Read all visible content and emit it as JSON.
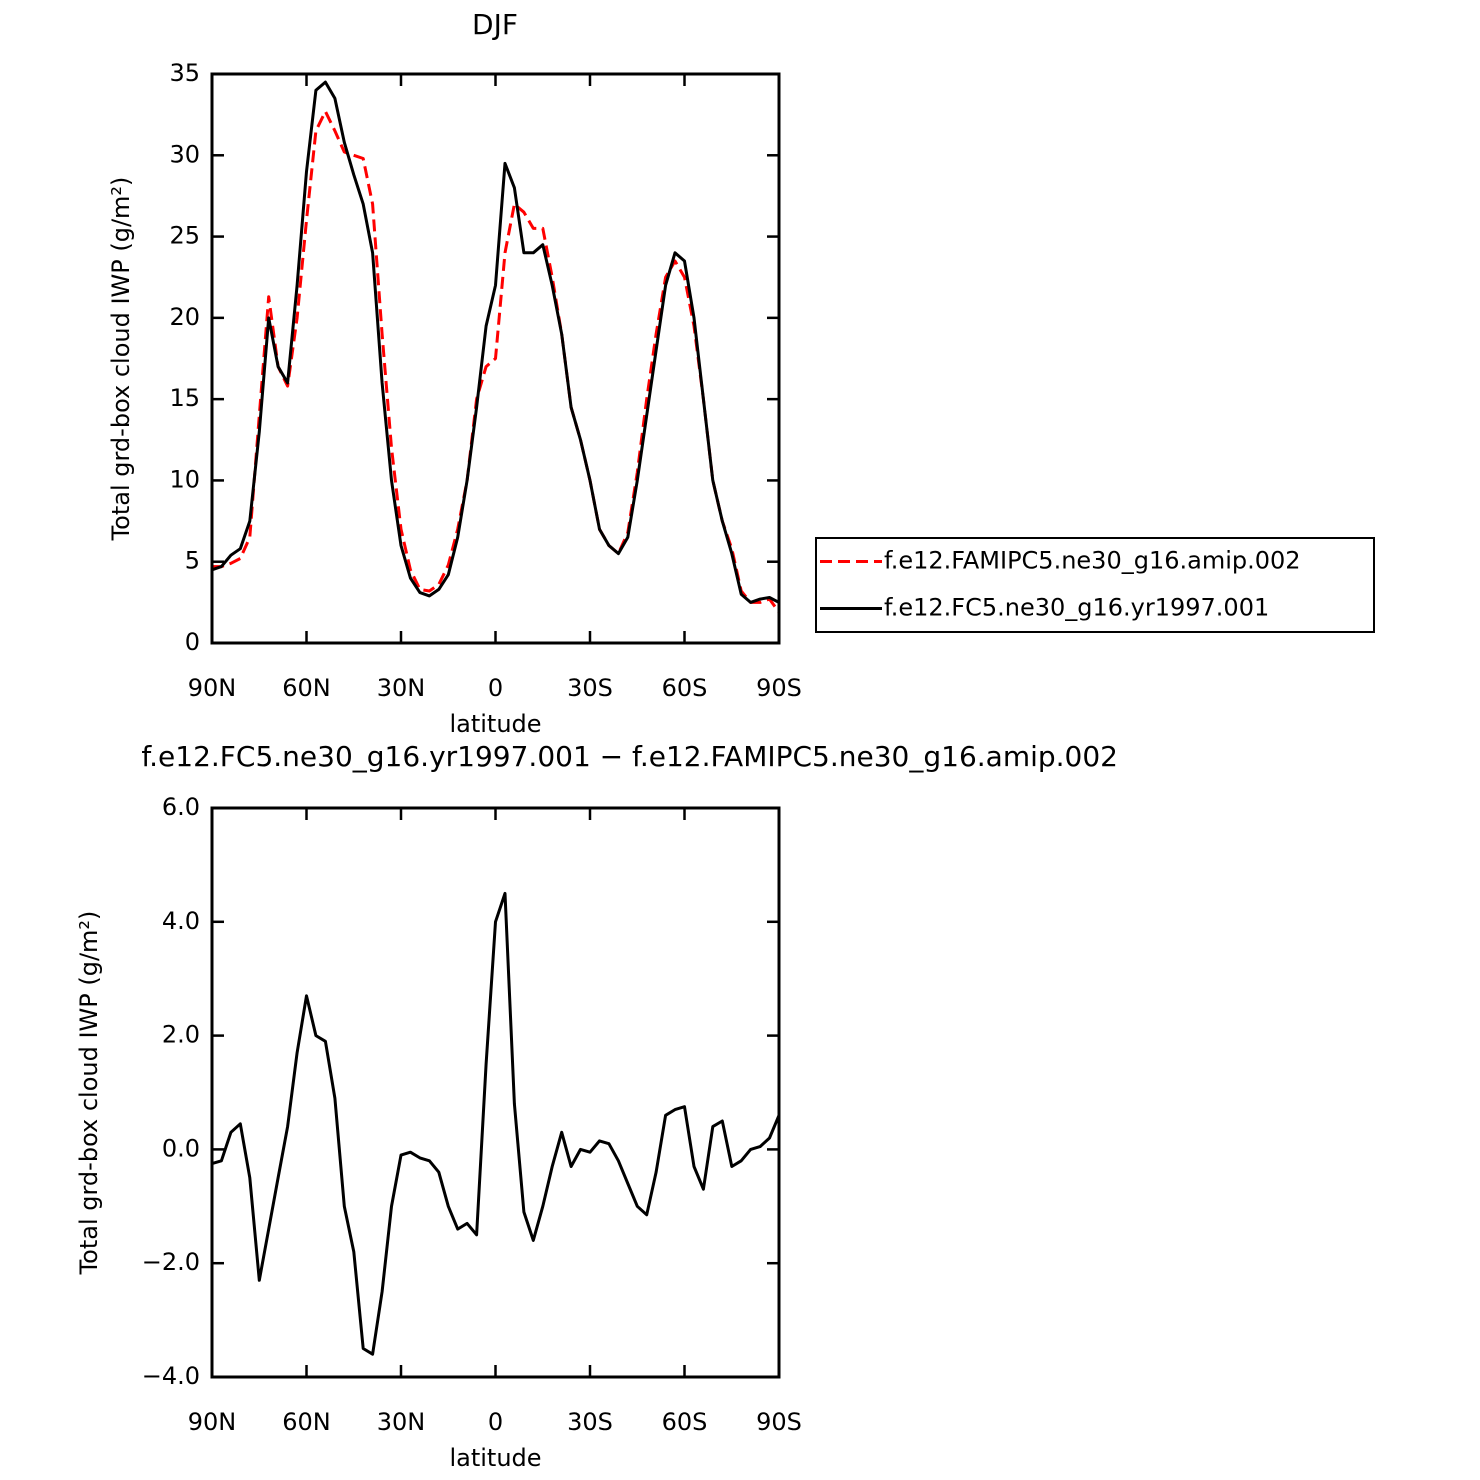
{
  "chart_data": [
    {
      "type": "line",
      "title": "DJF",
      "x_label": "latitude",
      "y_label": "Total grd-box cloud IWP (g/m²)",
      "x": [
        90,
        87,
        84,
        81,
        78,
        75,
        72,
        69,
        66,
        63,
        60,
        57,
        54,
        51,
        48,
        45,
        42,
        39,
        36,
        33,
        30,
        27,
        24,
        21,
        18,
        15,
        12,
        9,
        6,
        3,
        0,
        -3,
        -6,
        -9,
        -12,
        -15,
        -18,
        -21,
        -24,
        -27,
        -30,
        -33,
        -36,
        -39,
        -42,
        -45,
        -48,
        -51,
        -54,
        -57,
        -60,
        -63,
        -66,
        -69,
        -72,
        -75,
        -78,
        -81,
        -84,
        -87,
        -90
      ],
      "xlim": [
        90,
        -90
      ],
      "xticks": [
        {
          "value": 90,
          "label": "90N"
        },
        {
          "value": 60,
          "label": "60N"
        },
        {
          "value": 30,
          "label": "30N"
        },
        0,
        {
          "value": -30,
          "label": "30S"
        },
        {
          "value": -60,
          "label": "60S"
        },
        {
          "value": -90,
          "label": "90S"
        }
      ],
      "ylim": [
        0,
        35
      ],
      "yticks": [
        0,
        5,
        10,
        15,
        20,
        25,
        30,
        35
      ],
      "legend": "right",
      "series": [
        {
          "name": "f.e12.FAMIPC5.ne30_g16.amip.002",
          "color": "#ff0000",
          "dash": true,
          "values": [
            4.7,
            4.7,
            4.9,
            5.2,
            6.5,
            14,
            21.3,
            17,
            15.8,
            20,
            26,
            31.5,
            32.7,
            31.5,
            30.2,
            30,
            29.8,
            27,
            19,
            12,
            7,
            4.5,
            3.3,
            3.2,
            3.6,
            4.8,
            7,
            10,
            15,
            17,
            17.5,
            24,
            27,
            26.5,
            25.5,
            25.5,
            22.5,
            19,
            14.5,
            12.5,
            10,
            7,
            6,
            5.5,
            6.8,
            10.5,
            15,
            19,
            22.5,
            23.5,
            22.5,
            19.5,
            15,
            10,
            7.5,
            5.8,
            3.2,
            2.5,
            2.5,
            2.7,
            1.9
          ]
        },
        {
          "name": "f.e12.FC5.ne30_g16.yr1997.001",
          "color": "#000000",
          "dash": false,
          "values": [
            4.5,
            4.7,
            5.4,
            5.8,
            7.5,
            13,
            20,
            17,
            16,
            22,
            29,
            34,
            34.5,
            33.5,
            30.8,
            28.8,
            27,
            24,
            16,
            10,
            6,
            4,
            3.1,
            2.9,
            3.3,
            4.2,
            6.5,
            10,
            14.5,
            19.5,
            22,
            29.5,
            28,
            24,
            24,
            24.5,
            22,
            19,
            14.5,
            12.5,
            10,
            7,
            6,
            5.5,
            6.5,
            10,
            14,
            18,
            22,
            24,
            23.5,
            20,
            15,
            10,
            7.5,
            5.5,
            3,
            2.5,
            2.7,
            2.8,
            2.5
          ]
        }
      ]
    },
    {
      "type": "line",
      "title": "f.e12.FC5.ne30_g16.yr1997.001 − f.e12.FAMIPC5.ne30_g16.amip.002",
      "x_label": "latitude",
      "y_label": "Total grd-box cloud IWP (g/m²)",
      "x": [
        90,
        87,
        84,
        81,
        78,
        75,
        72,
        69,
        66,
        63,
        60,
        57,
        54,
        51,
        48,
        45,
        42,
        39,
        36,
        33,
        30,
        27,
        24,
        21,
        18,
        15,
        12,
        9,
        6,
        3,
        0,
        -3,
        -6,
        -9,
        -12,
        -15,
        -18,
        -21,
        -24,
        -27,
        -30,
        -33,
        -36,
        -39,
        -42,
        -45,
        -48,
        -51,
        -54,
        -57,
        -60,
        -63,
        -66,
        -69,
        -72,
        -75,
        -78,
        -81,
        -84,
        -87,
        -90
      ],
      "xlim": [
        90,
        -90
      ],
      "xticks": [
        {
          "value": 90,
          "label": "90N"
        },
        {
          "value": 60,
          "label": "60N"
        },
        {
          "value": 30,
          "label": "30N"
        },
        0,
        {
          "value": -30,
          "label": "30S"
        },
        {
          "value": -60,
          "label": "60S"
        },
        {
          "value": -90,
          "label": "90S"
        }
      ],
      "ylim": [
        -4,
        6
      ],
      "yticks": [
        {
          "value": -4,
          "label": "−4.0"
        },
        {
          "value": -2,
          "label": "−2.0"
        },
        {
          "value": 0,
          "label": "0.0"
        },
        {
          "value": 2,
          "label": "2.0"
        },
        {
          "value": 4,
          "label": "4.0"
        },
        {
          "value": 6,
          "label": "6.0"
        }
      ],
      "color": "#000000",
      "values": [
        -0.25,
        -0.2,
        0.3,
        0.45,
        -0.5,
        -2.3,
        -1.4,
        -0.5,
        0.4,
        1.7,
        2.7,
        2.0,
        1.9,
        0.9,
        -1.0,
        -1.8,
        -3.5,
        -3.6,
        -2.5,
        -1.0,
        -0.1,
        -0.05,
        -0.15,
        -0.2,
        -0.4,
        -1.0,
        -1.4,
        -1.3,
        -1.5,
        1.5,
        4.0,
        4.5,
        0.8,
        -1.1,
        -1.6,
        -1.0,
        -0.3,
        0.3,
        -0.3,
        0.0,
        -0.05,
        0.15,
        0.1,
        -0.2,
        -0.6,
        -1.0,
        -1.15,
        -0.4,
        0.6,
        0.7,
        0.75,
        -0.3,
        -0.7,
        0.4,
        0.5,
        -0.3,
        -0.2,
        0.0,
        0.05,
        0.2,
        0.6
      ]
    }
  ]
}
